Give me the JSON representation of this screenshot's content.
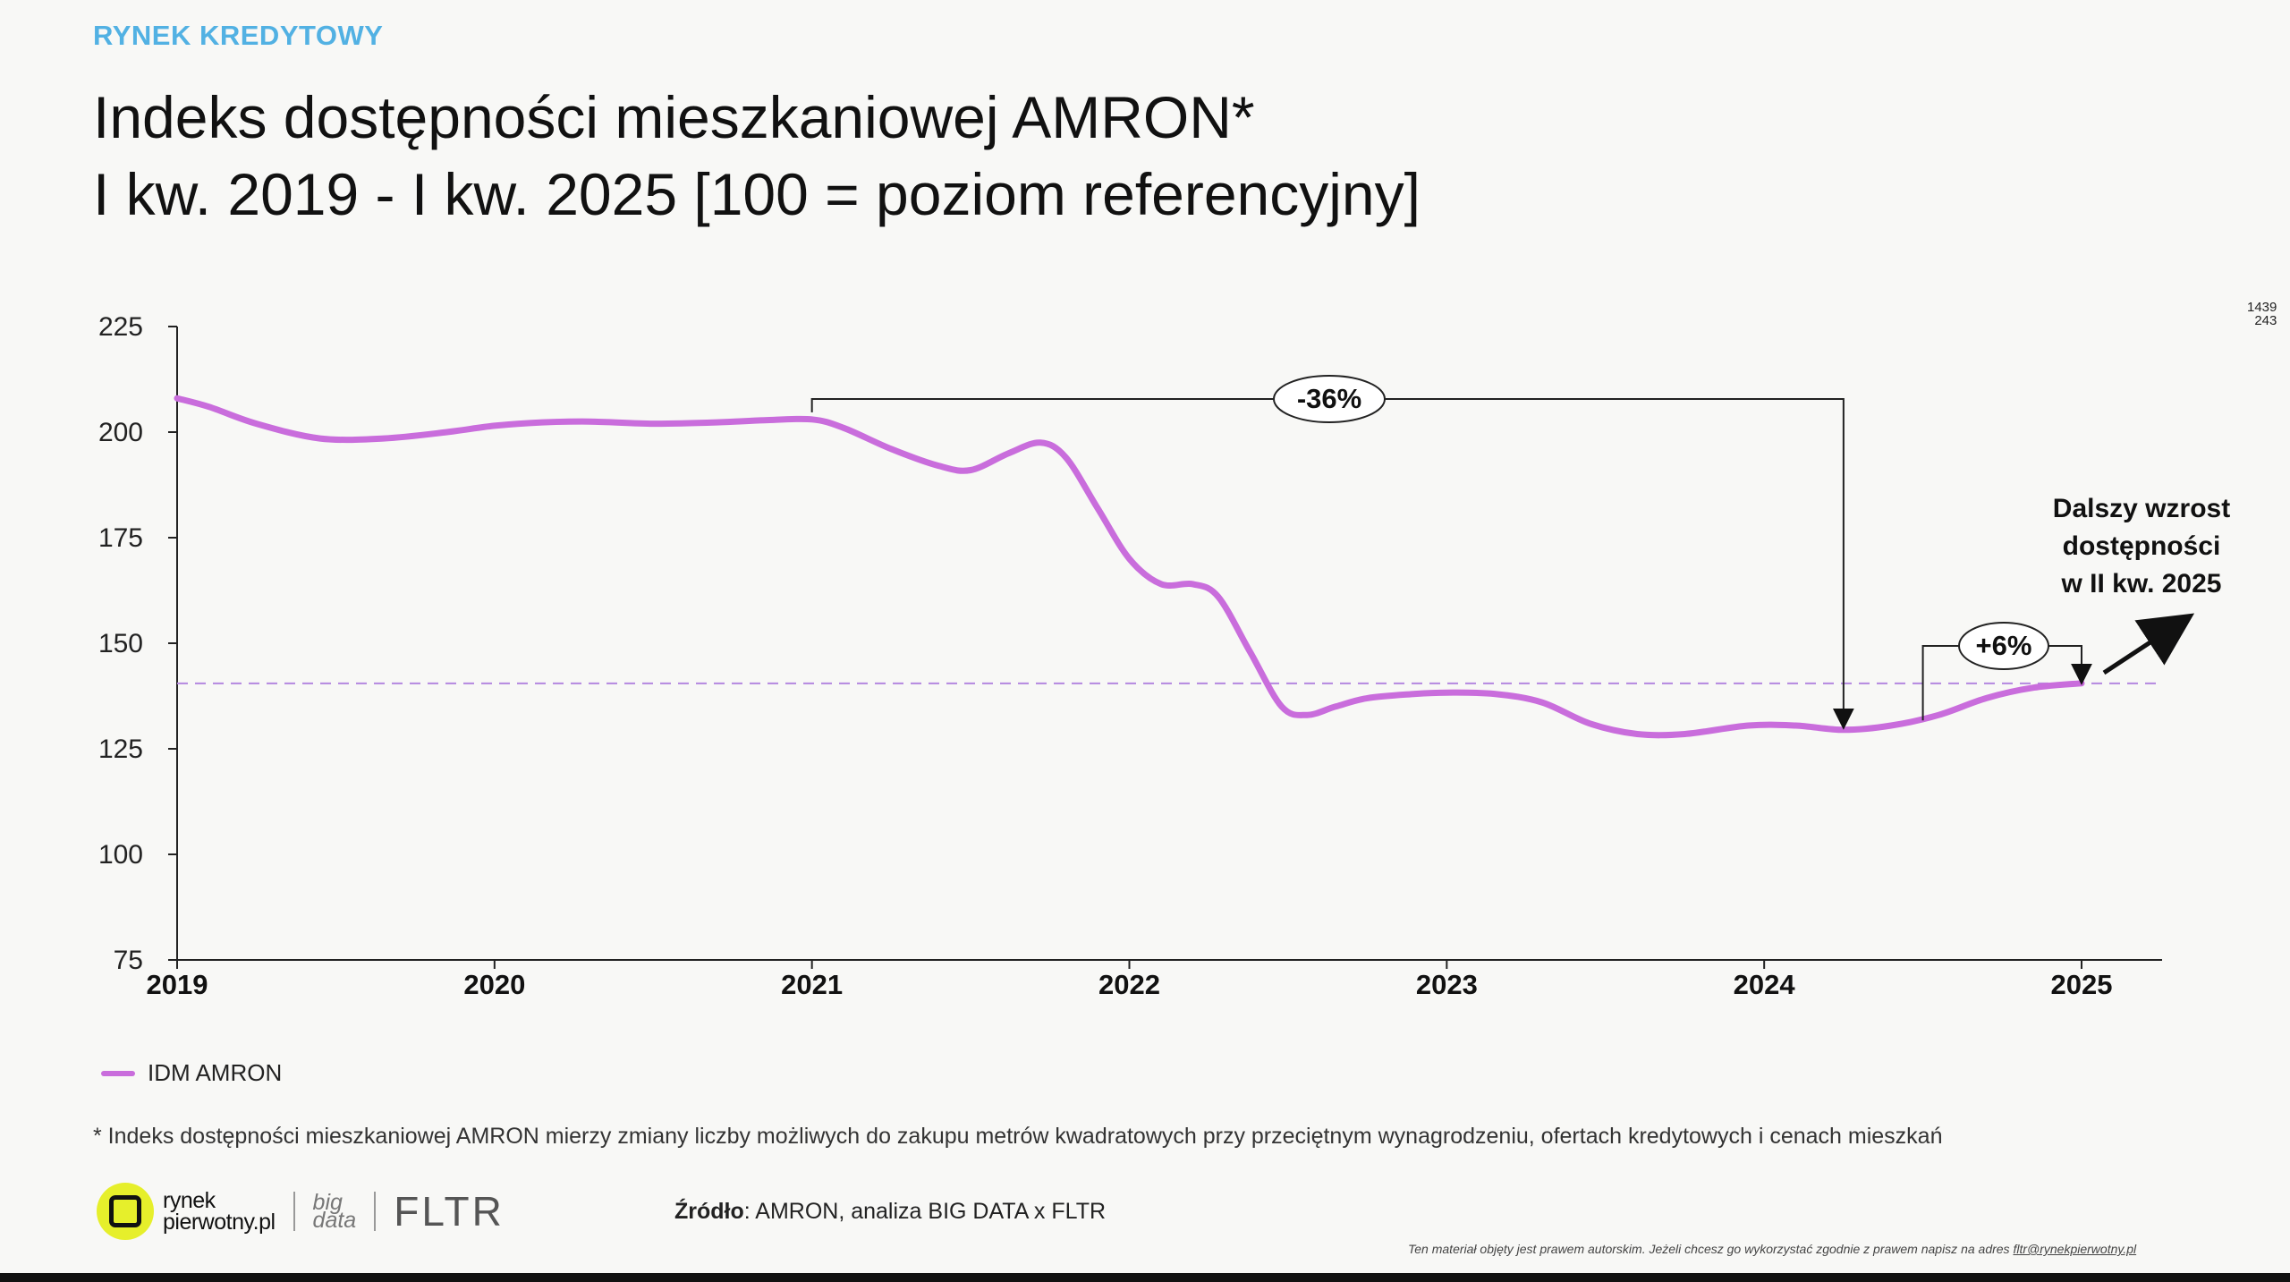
{
  "section_label": "RYNEK KREDYTOWY",
  "title_line1": "Indeks dostępności mieszkaniowej AMRON*",
  "title_line2": "I kw. 2019 - I kw. 2025 [100 = poziom referencyjny]",
  "corner_mark": {
    "top": "1439",
    "bottom": "243"
  },
  "colors": {
    "series": "#c96ddc",
    "reference_line": "#b487e0",
    "section": "#52b1e3",
    "logo_circle": "#e6ef2b"
  },
  "chart_data": {
    "type": "line",
    "xlim": [
      2019,
      2025.25
    ],
    "ylim": [
      75,
      225
    ],
    "y_ticks": [
      "225",
      "200",
      "175",
      "150",
      "125",
      "100",
      "75"
    ],
    "x_ticks": [
      "2019",
      "2020",
      "2021",
      "2022",
      "2023",
      "2024",
      "2025"
    ],
    "grid": false,
    "reference_line": 140.5,
    "series": [
      {
        "name": "IDM AMRON",
        "x": [
          2019.0,
          2019.1,
          2019.25,
          2019.45,
          2019.65,
          2019.85,
          2020.0,
          2020.15,
          2020.3,
          2020.5,
          2020.7,
          2020.85,
          2021.0,
          2021.1,
          2021.25,
          2021.4,
          2021.5,
          2021.62,
          2021.72,
          2021.8,
          2021.9,
          2022.0,
          2022.1,
          2022.2,
          2022.28,
          2022.38,
          2022.48,
          2022.56,
          2022.65,
          2022.75,
          2022.9,
          2023.0,
          2023.15,
          2023.3,
          2023.45,
          2023.6,
          2023.75,
          2023.95,
          2024.1,
          2024.25,
          2024.4,
          2024.55,
          2024.7,
          2024.85,
          2025.0
        ],
        "y": [
          208,
          206,
          202,
          198.5,
          198.5,
          200,
          201.5,
          202.3,
          202.5,
          202,
          202.3,
          202.8,
          203,
          201,
          196,
          192,
          191,
          195,
          197.5,
          194,
          182,
          170,
          164,
          164,
          161,
          148,
          135,
          133,
          135,
          137,
          138,
          138.3,
          138,
          136,
          131,
          128.5,
          128.5,
          130.5,
          130.5,
          129.5,
          130.5,
          133,
          137,
          139.5,
          140.5
        ]
      }
    ],
    "annotations": [
      {
        "label": "-36%"
      },
      {
        "label": "+6%"
      },
      {
        "text_lines": [
          "Dalszy wzrost",
          "dostępności",
          "w II kw. 2025"
        ]
      }
    ]
  },
  "legend_label": "IDM AMRON",
  "footnote": "* Indeks dostępności mieszkaniowej AMRON mierzy zmiany liczby możliwych do zakupu metrów kwadratowych przy przeciętnym wynagrodzeniu, ofertach kredytowych i cenach mieszkań",
  "logos": {
    "rynek_line1": "rynek",
    "rynek_line2": "pierwotny.pl",
    "bigdata_line1": "big",
    "bigdata_line2": "data",
    "fltr": "FLTR"
  },
  "source": {
    "label": "Źródło",
    "text": ": AMRON, analiza BIG DATA x FLTR"
  },
  "copyright": {
    "text": "Ten materiał objęty jest prawem autorskim. Jeżeli chcesz go wykorzystać zgodnie z prawem napisz na adres ",
    "email": "fltr@rynekpierwotny.pl"
  }
}
